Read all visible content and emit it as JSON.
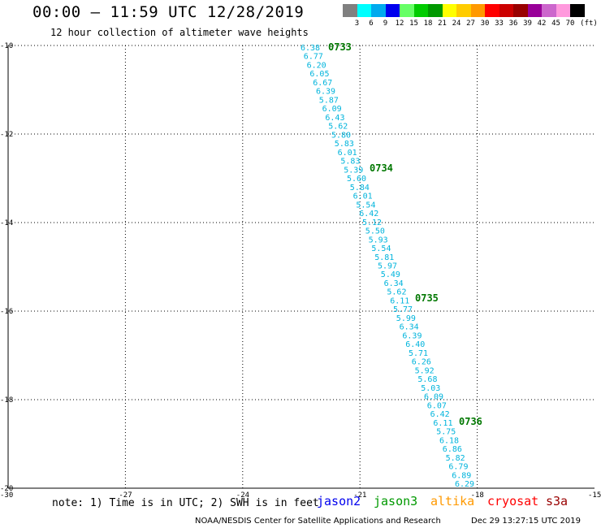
{
  "header": {
    "title": "00:00 – 11:59 UTC 12/28/2019",
    "subtitle": "12 hour collection of altimeter wave heights"
  },
  "legend": {
    "unit": "(ft)",
    "ticks": [
      "3",
      "6",
      "9",
      "12",
      "15",
      "18",
      "21",
      "24",
      "27",
      "30",
      "33",
      "36",
      "39",
      "42",
      "45",
      "70"
    ],
    "colors": [
      "#808080",
      "#00ffff",
      "#00aaee",
      "#0000ee",
      "#66ff66",
      "#00cc00",
      "#009900",
      "#ffff00",
      "#ffcc00",
      "#ff9900",
      "#ff0000",
      "#cc0000",
      "#990000",
      "#990099",
      "#cc66cc",
      "#ff99dd",
      "#000000"
    ]
  },
  "axes": {
    "y_labels": [
      "-10",
      "-12",
      "-14",
      "-16",
      "-18",
      "-20"
    ],
    "x_labels": [
      "-30",
      "-27",
      "-24",
      "-21",
      "-18",
      "-15"
    ],
    "lat_range": [
      -20,
      -10
    ],
    "lon_range": [
      -30,
      -15
    ]
  },
  "track": {
    "color": "#00b4dc",
    "values": [
      "6.38",
      "6.77",
      "6.20",
      "6.05",
      "6.67",
      "6.39",
      "5.87",
      "6.09",
      "6.43",
      "5.62",
      "5.80",
      "5.83",
      "6.01",
      "5.83",
      "5.39",
      "5.60",
      "5.84",
      "6.01",
      "5.54",
      "6.42",
      "5.12",
      "5.50",
      "5.93",
      "5.54",
      "5.81",
      "5.97",
      "5.49",
      "6.34",
      "5.62",
      "6.11",
      "5.77",
      "5.99",
      "6.34",
      "6.39",
      "6.40",
      "5.71",
      "6.26",
      "5.92",
      "5.68",
      "5.03",
      "6.09",
      "6.07",
      "6.42",
      "6.11",
      "5.75",
      "6.18",
      "6.86",
      "5.82",
      "6.79",
      "6.89",
      "6.29"
    ]
  },
  "times": {
    "color": "#007700",
    "labels": [
      "0733",
      "0734",
      "0735",
      "0736"
    ]
  },
  "note": "note: 1) Time is in UTC; 2) SWH is in feet",
  "satellites": [
    {
      "name": "jason2",
      "color": "#0000ee"
    },
    {
      "name": "jason3",
      "color": "#009900"
    },
    {
      "name": "altika",
      "color": "#ff9900"
    },
    {
      "name": "cryosat",
      "color": "#ff0000"
    },
    {
      "name": "s3a",
      "color": "#990000"
    }
  ],
  "footer": {
    "left": "NOAA/NESDIS Center for Satellite Applications and Research",
    "right": "Dec 29 13:27:15 UTC 2019"
  }
}
